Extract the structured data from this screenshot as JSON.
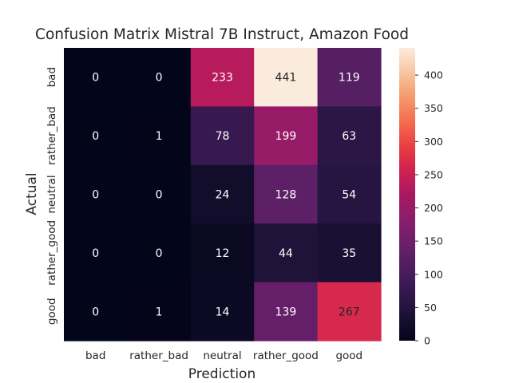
{
  "chart_data": {
    "type": "heatmap",
    "title": "Confusion Matrix Mistral 7B Instruct, Amazon Food",
    "xlabel": "Prediction",
    "ylabel": "Actual",
    "x_categories": [
      "bad",
      "rather_bad",
      "neutral",
      "rather_good",
      "good"
    ],
    "y_categories": [
      "bad",
      "rather_bad",
      "neutral",
      "rather_good",
      "good"
    ],
    "values": [
      [
        0,
        0,
        233,
        441,
        119
      ],
      [
        0,
        1,
        78,
        199,
        63
      ],
      [
        0,
        0,
        24,
        128,
        54
      ],
      [
        0,
        0,
        12,
        44,
        35
      ],
      [
        0,
        1,
        14,
        139,
        267
      ]
    ],
    "colorbar": {
      "min": 0,
      "max": 441,
      "ticks": [
        0,
        50,
        100,
        150,
        200,
        250,
        300,
        350,
        400
      ]
    },
    "colormap": "rocket",
    "colors": {
      "low": "#03051a",
      "high": "#faebdd"
    }
  }
}
